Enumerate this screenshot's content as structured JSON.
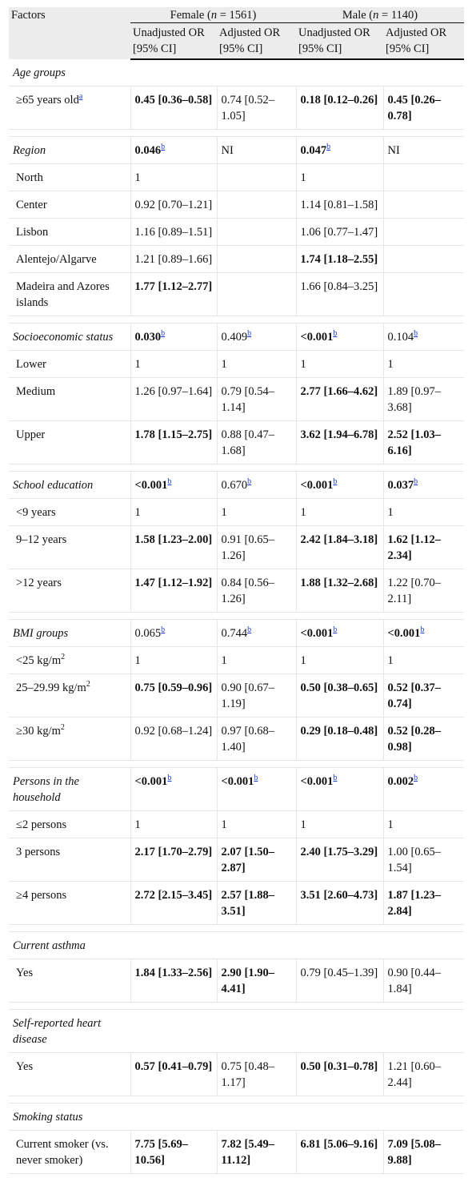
{
  "header": {
    "factors": "Factors",
    "female_label": "Female (",
    "female_n_var": "n",
    "female_n": " = 1561)",
    "male_label": "Male (",
    "male_n_var": "n",
    "male_n": " = 1140)",
    "col_unadj": "Unadjusted OR [95% CI]",
    "col_adj": "Adjusted OR [95% CI]"
  },
  "sections": [
    {
      "name": "Age groups",
      "header_values": null,
      "rows": [
        {
          "label": "≥65 years old",
          "label_sup": "a",
          "cells": [
            {
              "t": "0.45 [0.36–0.58]",
              "b": true
            },
            {
              "t": "0.74 [0.52–1.05]",
              "b": false
            },
            {
              "t": "0.18 [0.12–0.26]",
              "b": true
            },
            {
              "t": "0.45 [0.26–0.78]",
              "b": true
            }
          ]
        }
      ]
    },
    {
      "name": "Region",
      "header_values": [
        {
          "t": "0.046",
          "sup": "b",
          "b": true
        },
        {
          "t": "NI",
          "sup": "",
          "b": false
        },
        {
          "t": "0.047",
          "sup": "b",
          "b": true
        },
        {
          "t": "NI",
          "sup": "",
          "b": false
        }
      ],
      "rows": [
        {
          "label": "North",
          "label_sup": "",
          "cells": [
            {
              "t": "1",
              "b": false
            },
            {
              "t": "",
              "b": false
            },
            {
              "t": "1",
              "b": false
            },
            {
              "t": "",
              "b": false
            }
          ]
        },
        {
          "label": "Center",
          "label_sup": "",
          "cells": [
            {
              "t": "0.92 [0.70–1.21]",
              "b": false
            },
            {
              "t": "",
              "b": false
            },
            {
              "t": "1.14 [0.81–1.58]",
              "b": false
            },
            {
              "t": "",
              "b": false
            }
          ]
        },
        {
          "label": "Lisbon",
          "label_sup": "",
          "cells": [
            {
              "t": "1.16 [0.89–1.51]",
              "b": false
            },
            {
              "t": "",
              "b": false
            },
            {
              "t": "1.06 [0.77–1.47]",
              "b": false
            },
            {
              "t": "",
              "b": false
            }
          ]
        },
        {
          "label": "Alentejo/Algarve",
          "label_sup": "",
          "cells": [
            {
              "t": "1.21 [0.89–1.66]",
              "b": false
            },
            {
              "t": "",
              "b": false
            },
            {
              "t": "1.74 [1.18–2.55]",
              "b": true
            },
            {
              "t": "",
              "b": false
            }
          ]
        },
        {
          "label": "Madeira and Azores islands",
          "label_sup": "",
          "cells": [
            {
              "t": "1.77 [1.12–2.77]",
              "b": true
            },
            {
              "t": "",
              "b": false
            },
            {
              "t": "1.66 [0.84–3.25]",
              "b": false
            },
            {
              "t": "",
              "b": false
            }
          ]
        }
      ]
    },
    {
      "name": "Socioeconomic status",
      "header_values": [
        {
          "t": "0.030",
          "sup": "b",
          "b": true
        },
        {
          "t": "0.409",
          "sup": "b",
          "b": false
        },
        {
          "t": "<0.001",
          "sup": "b",
          "b": true
        },
        {
          "t": "0.104",
          "sup": "b",
          "b": false
        }
      ],
      "rows": [
        {
          "label": "Lower",
          "label_sup": "",
          "cells": [
            {
              "t": "1",
              "b": false
            },
            {
              "t": "1",
              "b": false
            },
            {
              "t": "1",
              "b": false
            },
            {
              "t": "1",
              "b": false
            }
          ]
        },
        {
          "label": "Medium",
          "label_sup": "",
          "cells": [
            {
              "t": "1.26 [0.97–1.64]",
              "b": false
            },
            {
              "t": "0.79 [0.54–1.14]",
              "b": false
            },
            {
              "t": "2.77 [1.66–4.62]",
              "b": true
            },
            {
              "t": "1.89 [0.97–3.68]",
              "b": false
            }
          ]
        },
        {
          "label": "Upper",
          "label_sup": "",
          "cells": [
            {
              "t": "1.78 [1.15–2.75]",
              "b": true
            },
            {
              "t": "0.88 [0.47–1.68]",
              "b": false
            },
            {
              "t": "3.62 [1.94–6.78]",
              "b": true
            },
            {
              "t": "2.52 [1.03–6.16]",
              "b": true
            }
          ]
        }
      ]
    },
    {
      "name": "School education",
      "header_values": [
        {
          "t": "<0.001",
          "sup": "b",
          "b": true
        },
        {
          "t": "0.670",
          "sup": "b",
          "b": false
        },
        {
          "t": "<0.001",
          "sup": "b",
          "b": true
        },
        {
          "t": "0.037",
          "sup": "b",
          "b": true
        }
      ],
      "rows": [
        {
          "label": "<9 years",
          "label_sup": "",
          "cells": [
            {
              "t": "1",
              "b": false
            },
            {
              "t": "1",
              "b": false
            },
            {
              "t": "1",
              "b": false
            },
            {
              "t": "1",
              "b": false
            }
          ]
        },
        {
          "label": "9–12 years",
          "label_sup": "",
          "cells": [
            {
              "t": "1.58 [1.23–2.00]",
              "b": true
            },
            {
              "t": "0.91 [0.65–1.26]",
              "b": false
            },
            {
              "t": "2.42 [1.84–3.18]",
              "b": true
            },
            {
              "t": "1.62 [1.12–2.34]",
              "b": true
            }
          ]
        },
        {
          "label": ">12 years",
          "label_sup": "",
          "cells": [
            {
              "t": "1.47 [1.12–1.92]",
              "b": true
            },
            {
              "t": "0.84 [0.56–1.26]",
              "b": false
            },
            {
              "t": "1.88 [1.32–2.68]",
              "b": true
            },
            {
              "t": "1.22 [0.70–2.11]",
              "b": false
            }
          ]
        }
      ]
    },
    {
      "name": "BMI groups",
      "header_values": [
        {
          "t": "0.065",
          "sup": "b",
          "b": false
        },
        {
          "t": "0.744",
          "sup": "b",
          "b": false
        },
        {
          "t": "<0.001",
          "sup": "b",
          "b": true
        },
        {
          "t": "<0.001",
          "sup": "b",
          "b": true
        }
      ],
      "rows": [
        {
          "label": "<25 kg/m",
          "label_sup": "2",
          "cells": [
            {
              "t": "1",
              "b": false
            },
            {
              "t": "1",
              "b": false
            },
            {
              "t": "1",
              "b": false
            },
            {
              "t": "1",
              "b": false
            }
          ]
        },
        {
          "label": "25–29.99 kg/m",
          "label_sup": "2",
          "cells": [
            {
              "t": "0.75 [0.59–0.96]",
              "b": true
            },
            {
              "t": "0.90 [0.67–1.19]",
              "b": false
            },
            {
              "t": "0.50 [0.38–0.65]",
              "b": true
            },
            {
              "t": "0.52 [0.37–0.74]",
              "b": true
            }
          ]
        },
        {
          "label": "≥30 kg/m",
          "label_sup": "2",
          "cells": [
            {
              "t": "0.92 [0.68–1.24]",
              "b": false
            },
            {
              "t": "0.97 [0.68–1.40]",
              "b": false
            },
            {
              "t": "0.29 [0.18–0.48]",
              "b": true
            },
            {
              "t": "0.52 [0.28–0.98]",
              "b": true
            }
          ]
        }
      ]
    },
    {
      "name": "Persons in the household",
      "header_values": [
        {
          "t": "<0.001",
          "sup": "b",
          "b": true
        },
        {
          "t": "<0.001",
          "sup": "b",
          "b": true
        },
        {
          "t": "<0.001",
          "sup": "b",
          "b": true
        },
        {
          "t": "0.002",
          "sup": "b",
          "b": true
        }
      ],
      "rows": [
        {
          "label": "≤2 persons",
          "label_sup": "",
          "cells": [
            {
              "t": "1",
              "b": false
            },
            {
              "t": "1",
              "b": false
            },
            {
              "t": "1",
              "b": false
            },
            {
              "t": "1",
              "b": false
            }
          ]
        },
        {
          "label": "3 persons",
          "label_sup": "",
          "cells": [
            {
              "t": "2.17 [1.70–2.79]",
              "b": true
            },
            {
              "t": "2.07 [1.50–2.87]",
              "b": true
            },
            {
              "t": "2.40 [1.75–3.29]",
              "b": true
            },
            {
              "t": "1.00 [0.65–1.54]",
              "b": false
            }
          ]
        },
        {
          "label": "≥4 persons",
          "label_sup": "",
          "cells": [
            {
              "t": "2.72 [2.15–3.45]",
              "b": true
            },
            {
              "t": "2.57 [1.88–3.51]",
              "b": true
            },
            {
              "t": "3.51 [2.60–4.73]",
              "b": true
            },
            {
              "t": "1.87 [1.23–2.84]",
              "b": true
            }
          ]
        }
      ]
    },
    {
      "name": "Current asthma",
      "header_values": null,
      "rows": [
        {
          "label": "Yes",
          "label_sup": "",
          "cells": [
            {
              "t": "1.84 [1.33–2.56]",
              "b": true
            },
            {
              "t": "2.90 [1.90–4.41]",
              "b": true
            },
            {
              "t": "0.79 [0.45–1.39]",
              "b": false
            },
            {
              "t": "0.90 [0.44–1.84]",
              "b": false
            }
          ]
        }
      ]
    },
    {
      "name": "Self-reported heart disease",
      "header_values": null,
      "rows": [
        {
          "label": "Yes",
          "label_sup": "",
          "cells": [
            {
              "t": "0.57 [0.41–0.79]",
              "b": true
            },
            {
              "t": "0.75 [0.48–1.17]",
              "b": false
            },
            {
              "t": "0.50 [0.31–0.78]",
              "b": true
            },
            {
              "t": "1.21 [0.60–2.44]",
              "b": false
            }
          ]
        }
      ]
    },
    {
      "name": "Smoking status",
      "header_values": null,
      "rows": [
        {
          "label": "Current smoker (vs. never smoker)",
          "label_sup": "",
          "cells": [
            {
              "t": "7.75 [5.69–10.56]",
              "b": true
            },
            {
              "t": "7.82 [5.49–11.12]",
              "b": true
            },
            {
              "t": "6.81 [5.06–9.16]",
              "b": true
            },
            {
              "t": "7.09 [5.08–9.88]",
              "b": true
            }
          ]
        }
      ]
    }
  ]
}
